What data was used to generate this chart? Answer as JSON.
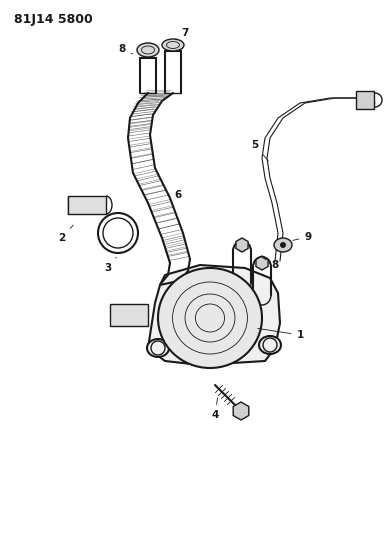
{
  "title": "81J14 5800",
  "bg_color": "#ffffff",
  "line_color": "#1a1a1a",
  "label_color": "#1a1a1a",
  "label_fontsize": 7.5,
  "fig_width": 3.89,
  "fig_height": 5.33,
  "dpi": 100
}
